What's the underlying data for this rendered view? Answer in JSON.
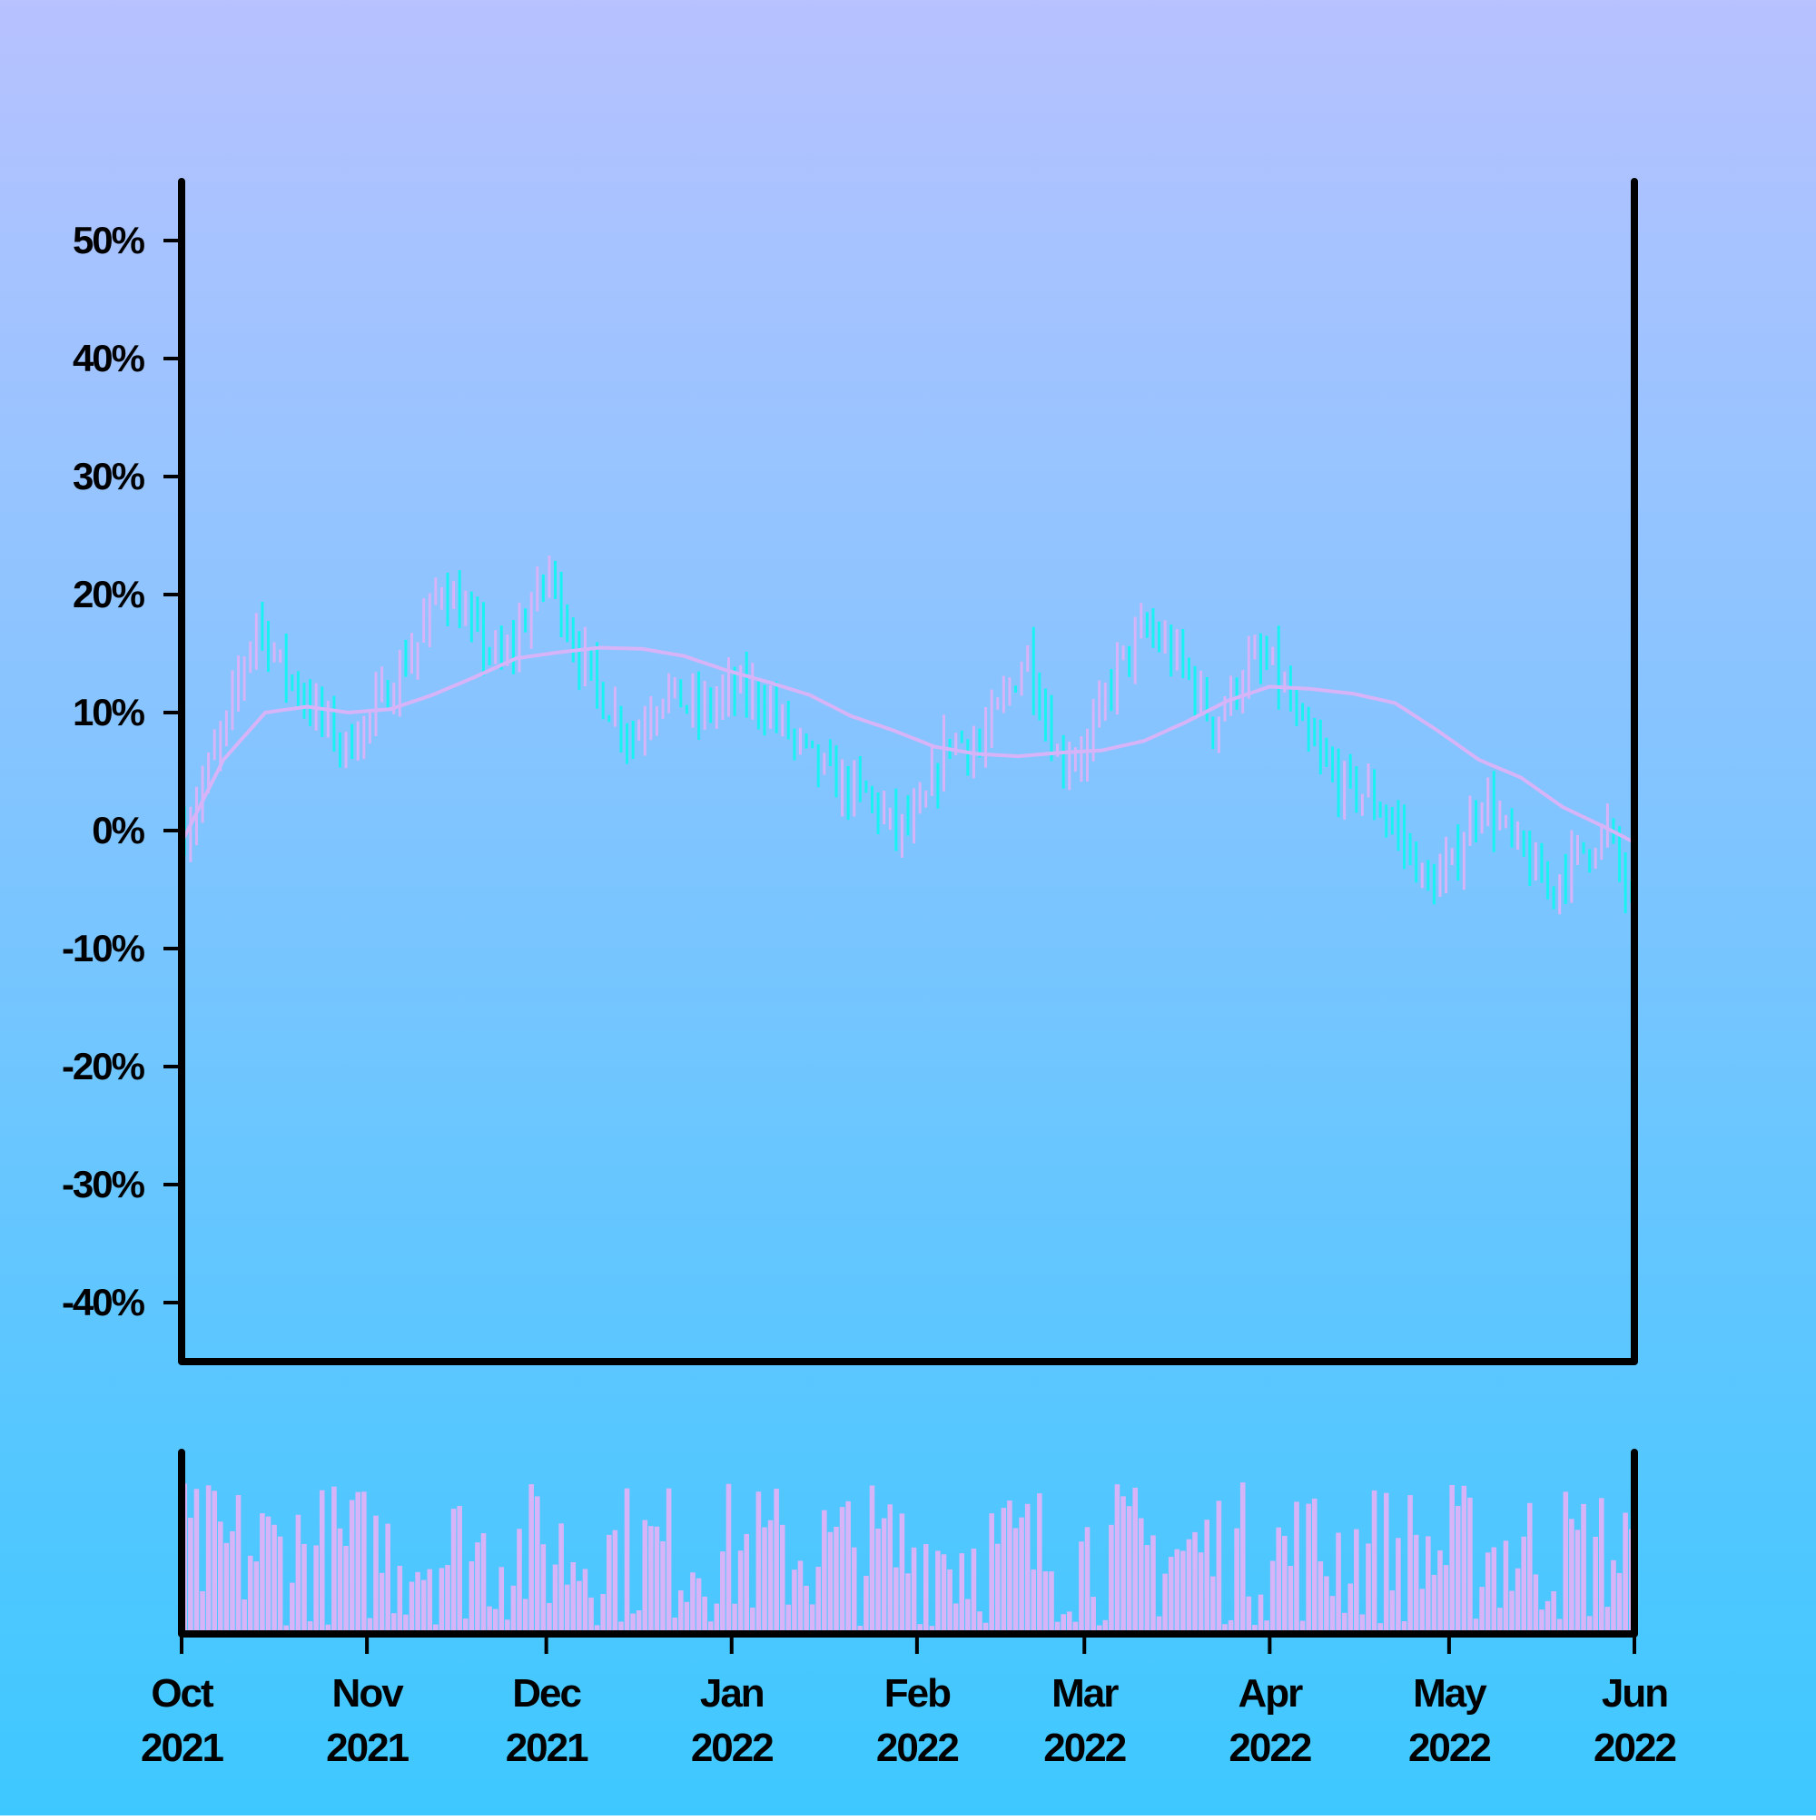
{
  "colors": {
    "background_top": "#B7C2FF",
    "background_bottom": "#3DC8FF",
    "up_bar": "#D7B4F7",
    "down_bar": "#19F2F2",
    "moving_average": "#D7B4F7",
    "volume_bar": "#D7B4F7",
    "axis": "#000000"
  },
  "chart_data": {
    "type": "ohlc",
    "x_range": [
      "2021-10-01",
      "2022-06-01"
    ],
    "y_range_percent": [
      -45,
      55
    ],
    "yticks": [
      {
        "value": 50,
        "label": "50%"
      },
      {
        "value": 40,
        "label": "40%"
      },
      {
        "value": 30,
        "label": "30%"
      },
      {
        "value": 20,
        "label": "20%"
      },
      {
        "value": 10,
        "label": "10%"
      },
      {
        "value": 0,
        "label": "0%"
      },
      {
        "value": -10,
        "label": "-10%"
      },
      {
        "value": -20,
        "label": "-20%"
      },
      {
        "value": -30,
        "label": "-30%"
      },
      {
        "value": -40,
        "label": "-40%"
      }
    ],
    "xticks": [
      {
        "date": "2021-10-01",
        "month": "Oct",
        "year": "2021"
      },
      {
        "date": "2021-11-01",
        "month": "Nov",
        "year": "2021"
      },
      {
        "date": "2021-12-01",
        "month": "Dec",
        "year": "2021"
      },
      {
        "date": "2022-01-01",
        "month": "Jan",
        "year": "2022"
      },
      {
        "date": "2022-02-01",
        "month": "Feb",
        "year": "2022"
      },
      {
        "date": "2022-03-01",
        "month": "Mar",
        "year": "2022"
      },
      {
        "date": "2022-04-01",
        "month": "Apr",
        "year": "2022"
      },
      {
        "date": "2022-05-01",
        "month": "May",
        "year": "2022"
      },
      {
        "date": "2022-06-01",
        "month": "Jun",
        "year": "2022"
      }
    ],
    "close_anchors": [
      [
        "2021-10-01",
        0
      ],
      [
        "2021-10-08",
        9
      ],
      [
        "2021-10-13",
        18
      ],
      [
        "2021-10-17",
        14
      ],
      [
        "2021-10-23",
        10
      ],
      [
        "2021-10-28",
        7
      ],
      [
        "2021-11-03",
        11
      ],
      [
        "2021-11-09",
        16
      ],
      [
        "2021-11-13",
        21
      ],
      [
        "2021-11-18",
        17
      ],
      [
        "2021-11-23",
        14
      ],
      [
        "2021-11-28",
        19
      ],
      [
        "2021-12-01",
        22
      ],
      [
        "2021-12-05",
        16
      ],
      [
        "2021-12-10",
        11
      ],
      [
        "2021-12-15",
        8
      ],
      [
        "2021-12-20",
        12
      ],
      [
        "2021-12-26",
        10
      ],
      [
        "2022-01-01",
        12
      ],
      [
        "2022-01-06",
        11
      ],
      [
        "2022-01-12",
        7
      ],
      [
        "2022-01-18",
        4
      ],
      [
        "2022-01-23",
        3
      ],
      [
        "2022-01-28",
        0
      ],
      [
        "2022-02-01",
        1
      ],
      [
        "2022-02-06",
        8
      ],
      [
        "2022-02-11",
        7
      ],
      [
        "2022-02-16",
        12
      ],
      [
        "2022-02-19",
        15
      ],
      [
        "2022-02-24",
        6
      ],
      [
        "2022-03-01",
        7
      ],
      [
        "2022-03-06",
        14
      ],
      [
        "2022-03-11",
        17
      ],
      [
        "2022-03-17",
        14
      ],
      [
        "2022-03-22",
        9
      ],
      [
        "2022-03-28",
        14
      ],
      [
        "2022-04-01",
        14
      ],
      [
        "2022-04-06",
        8
      ],
      [
        "2022-04-12",
        4
      ],
      [
        "2022-04-17",
        3
      ],
      [
        "2022-04-22",
        0
      ],
      [
        "2022-04-27",
        -5
      ],
      [
        "2022-05-01",
        -3
      ],
      [
        "2022-05-06",
        3
      ],
      [
        "2022-05-11",
        -1
      ],
      [
        "2022-05-17",
        -5
      ],
      [
        "2022-05-22",
        -2
      ],
      [
        "2022-05-27",
        0
      ],
      [
        "2022-06-01",
        -8
      ]
    ],
    "moving_average": [
      [
        "2021-10-01",
        -1
      ],
      [
        "2021-10-08",
        6
      ],
      [
        "2021-10-15",
        10
      ],
      [
        "2021-10-22",
        10.5
      ],
      [
        "2021-10-29",
        10
      ],
      [
        "2021-11-05",
        10.3
      ],
      [
        "2021-11-12",
        11.5
      ],
      [
        "2021-11-19",
        13
      ],
      [
        "2021-11-26",
        14.6
      ],
      [
        "2021-12-03",
        15.1
      ],
      [
        "2021-12-10",
        15.5
      ],
      [
        "2021-12-17",
        15.4
      ],
      [
        "2021-12-24",
        14.8
      ],
      [
        "2021-12-31",
        13.6
      ],
      [
        "2022-01-07",
        12.6
      ],
      [
        "2022-01-14",
        11.5
      ],
      [
        "2022-01-21",
        9.7
      ],
      [
        "2022-01-28",
        8.5
      ],
      [
        "2022-02-04",
        7.1
      ],
      [
        "2022-02-11",
        6.5
      ],
      [
        "2022-02-18",
        6.3
      ],
      [
        "2022-02-25",
        6.6
      ],
      [
        "2022-03-04",
        6.8
      ],
      [
        "2022-03-11",
        7.6
      ],
      [
        "2022-03-18",
        9.2
      ],
      [
        "2022-03-25",
        11
      ],
      [
        "2022-04-01",
        12.2
      ],
      [
        "2022-04-08",
        12
      ],
      [
        "2022-04-15",
        11.6
      ],
      [
        "2022-04-22",
        10.8
      ],
      [
        "2022-04-29",
        8.5
      ],
      [
        "2022-05-06",
        6
      ],
      [
        "2022-05-13",
        4.5
      ],
      [
        "2022-05-20",
        2
      ],
      [
        "2022-05-27",
        0.3
      ],
      [
        "2022-06-01",
        -1
      ]
    ],
    "volume_range": [
      0,
      1
    ],
    "grid": false,
    "legend": "none"
  }
}
